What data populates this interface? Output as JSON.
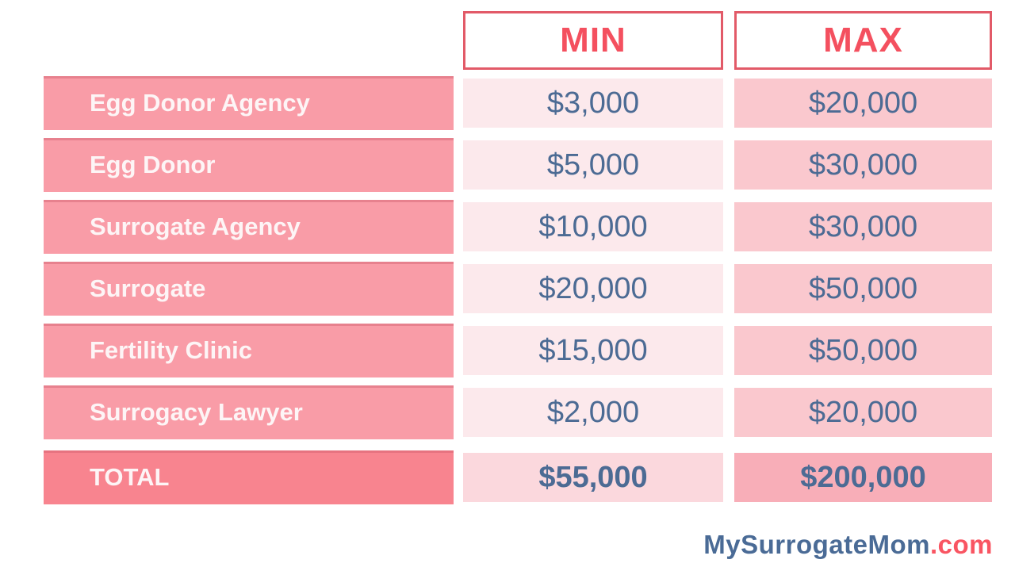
{
  "table": {
    "columns": [
      {
        "key": "min",
        "label": "MIN"
      },
      {
        "key": "max",
        "label": "MAX"
      }
    ],
    "rows": [
      {
        "label": "Egg Donor Agency",
        "min": "$3,000",
        "max": "$20,000"
      },
      {
        "label": "Egg Donor",
        "min": "$5,000",
        "max": "$30,000"
      },
      {
        "label": "Surrogate Agency",
        "min": "$10,000",
        "max": "$30,000"
      },
      {
        "label": "Surrogate",
        "min": "$20,000",
        "max": "$50,000"
      },
      {
        "label": "Fertility Clinic",
        "min": "$15,000",
        "max": "$50,000"
      },
      {
        "label": "Surrogacy Lawyer",
        "min": "$2,000",
        "max": "$20,000"
      }
    ],
    "total": {
      "label": "TOTAL",
      "min": "$55,000",
      "max": "$200,000"
    }
  },
  "logo": {
    "name": "MySurrogateMom",
    "suffix": ".com"
  },
  "colors": {
    "header_border": "#e25a68",
    "header_text": "#f4505f",
    "row_label_bg": "#f99ca7",
    "row_label_total_bg": "#f8848f",
    "row_label_text": "#fdf5f6",
    "min_cell_bg": "#fce9ec",
    "max_cell_bg": "#fac8ce",
    "min_total_cell_bg": "#fbd8dd",
    "max_total_cell_bg": "#f8aeb8",
    "value_text": "#4c6b94",
    "logo_name": "#4a6b96",
    "logo_suffix": "#f95562"
  },
  "chart_data": {
    "type": "table",
    "columns": [
      "",
      "MIN",
      "MAX"
    ],
    "rows": [
      [
        "Egg Donor Agency",
        3000,
        20000
      ],
      [
        "Egg Donor",
        5000,
        30000
      ],
      [
        "Surrogate Agency",
        10000,
        30000
      ],
      [
        "Surrogate",
        20000,
        50000
      ],
      [
        "Fertility Clinic",
        15000,
        50000
      ],
      [
        "Surrogacy Lawyer",
        2000,
        20000
      ],
      [
        "TOTAL",
        55000,
        200000
      ]
    ]
  }
}
